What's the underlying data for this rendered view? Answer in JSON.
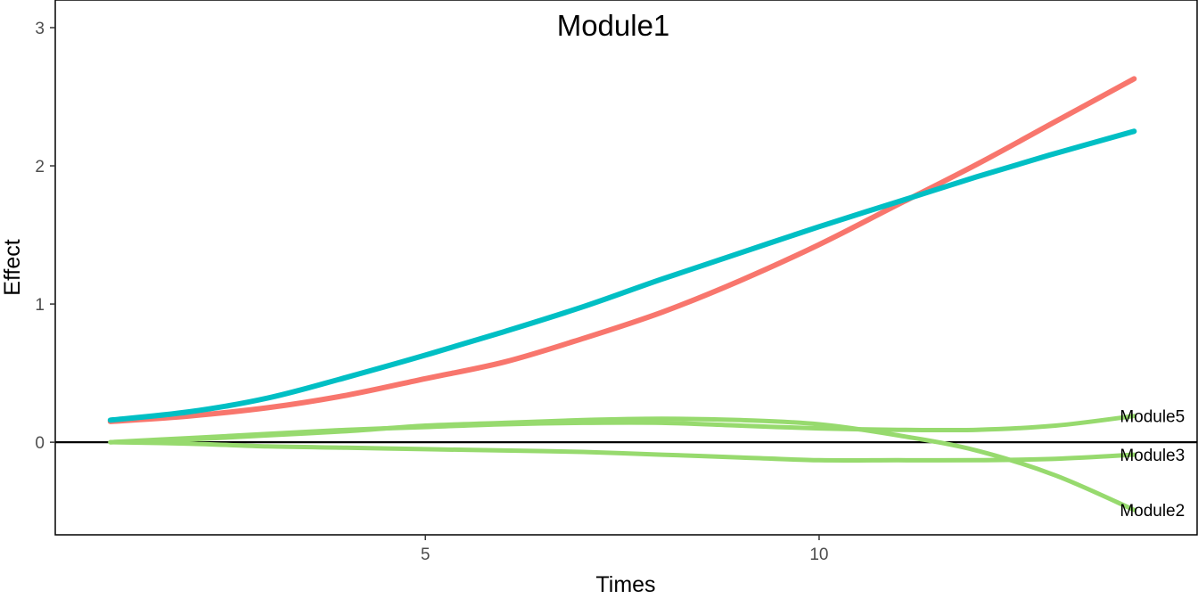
{
  "chart_data": {
    "type": "line",
    "title": "Module1",
    "xlabel": "Times",
    "ylabel": "Effect",
    "xlim": [
      0.3,
      14.8
    ],
    "ylim": [
      -0.67,
      3.2
    ],
    "x_ticks": [
      5,
      10
    ],
    "y_ticks": [
      0,
      1,
      2,
      3
    ],
    "grid": false,
    "reference_line_y": 0,
    "series": [
      {
        "label": "",
        "color": "#F8766D",
        "x": [
          1,
          2,
          3,
          4,
          5,
          6,
          7,
          8,
          9,
          10,
          11,
          12,
          13,
          14
        ],
        "y": [
          0.15,
          0.19,
          0.25,
          0.34,
          0.46,
          0.58,
          0.75,
          0.94,
          1.17,
          1.43,
          1.72,
          2.01,
          2.32,
          2.63
        ]
      },
      {
        "label": "",
        "color": "#00BFC4",
        "x": [
          1,
          2,
          3,
          4,
          5,
          6,
          7,
          8,
          9,
          10,
          11,
          12,
          13,
          14
        ],
        "y": [
          0.16,
          0.22,
          0.32,
          0.47,
          0.63,
          0.8,
          0.98,
          1.18,
          1.37,
          1.56,
          1.74,
          1.92,
          2.09,
          2.25
        ]
      },
      {
        "label": "Module5",
        "color": "#97DA6E",
        "x": [
          1,
          2,
          3,
          4,
          5,
          6,
          7,
          8,
          9,
          10,
          11,
          12,
          13,
          14
        ],
        "y": [
          0.0,
          0.03,
          0.06,
          0.09,
          0.11,
          0.13,
          0.14,
          0.14,
          0.12,
          0.1,
          0.09,
          0.09,
          0.12,
          0.19
        ]
      },
      {
        "label": "Module3",
        "color": "#97DA6E",
        "x": [
          1,
          2,
          3,
          4,
          5,
          6,
          7,
          8,
          9,
          10,
          11,
          12,
          13,
          14
        ],
        "y": [
          0.0,
          -0.01,
          -0.03,
          -0.04,
          -0.05,
          -0.06,
          -0.07,
          -0.09,
          -0.11,
          -0.13,
          -0.13,
          -0.13,
          -0.12,
          -0.09
        ]
      },
      {
        "label": "Module2",
        "color": "#97DA6E",
        "x": [
          1,
          2,
          3,
          4,
          5,
          6,
          7,
          8,
          9,
          10,
          11,
          12,
          13,
          14
        ],
        "y": [
          0.0,
          0.02,
          0.05,
          0.08,
          0.12,
          0.14,
          0.16,
          0.17,
          0.16,
          0.13,
          0.05,
          -0.06,
          -0.24,
          -0.49
        ]
      }
    ]
  }
}
